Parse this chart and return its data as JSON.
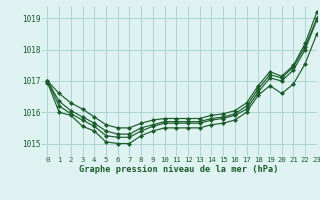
{
  "bg_color": "#dff2f2",
  "grid_color": "#aed4d4",
  "line_color": "#1a5c2a",
  "xlabel": "Graphe pression niveau de la mer (hPa)",
  "xlim": [
    -0.5,
    23
  ],
  "ylim": [
    1014.6,
    1019.4
  ],
  "yticks": [
    1015,
    1016,
    1017,
    1018,
    1019
  ],
  "xticks": [
    0,
    1,
    2,
    3,
    4,
    5,
    6,
    7,
    8,
    9,
    10,
    11,
    12,
    13,
    14,
    15,
    16,
    17,
    18,
    19,
    20,
    21,
    22,
    23
  ],
  "series_high": [
    1017.0,
    1016.6,
    1016.3,
    1016.1,
    1015.85,
    1015.6,
    1015.5,
    1015.5,
    1015.65,
    1015.75,
    1015.8,
    1015.8,
    1015.8,
    1015.8,
    1015.9,
    1015.95,
    1016.05,
    1016.3,
    1016.85,
    1017.3,
    1017.15,
    1017.5,
    1018.2,
    1019.2
  ],
  "series_mid1": [
    1017.0,
    1016.35,
    1016.05,
    1015.85,
    1015.65,
    1015.4,
    1015.3,
    1015.3,
    1015.5,
    1015.6,
    1015.7,
    1015.7,
    1015.7,
    1015.7,
    1015.8,
    1015.85,
    1015.95,
    1016.2,
    1016.75,
    1017.2,
    1017.1,
    1017.45,
    1018.1,
    1019.0
  ],
  "series_mid2": [
    1017.0,
    1016.2,
    1015.95,
    1015.75,
    1015.55,
    1015.25,
    1015.2,
    1015.2,
    1015.4,
    1015.55,
    1015.65,
    1015.65,
    1015.65,
    1015.65,
    1015.75,
    1015.8,
    1015.9,
    1016.1,
    1016.65,
    1017.1,
    1017.0,
    1017.35,
    1018.0,
    1018.95
  ],
  "series_low": [
    1016.95,
    1016.0,
    1015.9,
    1015.55,
    1015.4,
    1015.05,
    1015.0,
    1015.0,
    1015.25,
    1015.4,
    1015.5,
    1015.5,
    1015.5,
    1015.5,
    1015.6,
    1015.65,
    1015.75,
    1016.0,
    1016.55,
    1016.85,
    1016.6,
    1016.9,
    1017.55,
    1018.5
  ]
}
